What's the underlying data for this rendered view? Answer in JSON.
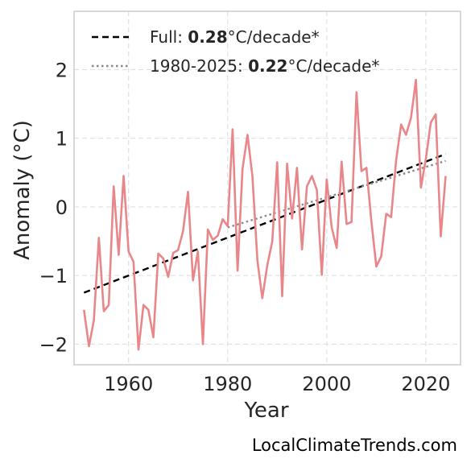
{
  "chart_data": {
    "type": "line",
    "xlabel": "Year",
    "ylabel": "Anomaly (°C)",
    "xlim": [
      1949,
      2027
    ],
    "ylim": [
      -2.3,
      2.85
    ],
    "xticks": [
      1960,
      1980,
      2000,
      2020
    ],
    "yticks": [
      2,
      1,
      0,
      -1,
      -2
    ],
    "xtick_labels": [
      "1960",
      "1980",
      "2000",
      "2020"
    ],
    "ytick_labels": [
      "2",
      "1",
      "0",
      "−1",
      "−2"
    ],
    "grid": true,
    "legend_position": "top-left",
    "series": [
      {
        "name": "",
        "color": "#e8868a",
        "x": [
          1951,
          1952,
          1953,
          1954,
          1955,
          1956,
          1957,
          1958,
          1959,
          1960,
          1961,
          1962,
          1963,
          1964,
          1965,
          1966,
          1967,
          1968,
          1969,
          1970,
          1971,
          1972,
          1973,
          1974,
          1975,
          1976,
          1977,
          1978,
          1979,
          1980,
          1981,
          1982,
          1983,
          1984,
          1985,
          1986,
          1987,
          1988,
          1989,
          1990,
          1991,
          1992,
          1993,
          1994,
          1995,
          1996,
          1997,
          1998,
          1999,
          2000,
          2001,
          2002,
          2003,
          2004,
          2005,
          2006,
          2007,
          2008,
          2009,
          2010,
          2011,
          2012,
          2013,
          2014,
          2015,
          2016,
          2017,
          2018,
          2019,
          2020,
          2021,
          2022,
          2023,
          2024
        ],
        "values": [
          -1.5,
          -2.03,
          -1.65,
          -0.45,
          -1.52,
          -1.43,
          0.3,
          -0.7,
          0.45,
          -0.65,
          -0.8,
          -2.08,
          -1.43,
          -1.5,
          -1.9,
          -0.68,
          -0.75,
          -1.02,
          -0.67,
          -0.63,
          -0.35,
          0.22,
          -1.07,
          -0.65,
          -2.0,
          -0.33,
          -0.48,
          -0.42,
          -0.18,
          -0.28,
          1.13,
          -0.93,
          0.55,
          1.05,
          0.45,
          -0.78,
          -1.33,
          -0.85,
          -0.5,
          0.65,
          -1.3,
          0.63,
          -0.17,
          0.57,
          -0.62,
          0.3,
          0.45,
          0.25,
          -0.99,
          0.4,
          -0.3,
          -0.6,
          0.66,
          -0.25,
          -0.22,
          1.67,
          0.52,
          0.57,
          -0.2,
          -0.87,
          -0.72,
          -0.1,
          -0.15,
          0.68,
          1.2,
          1.05,
          1.3,
          1.85,
          0.28,
          0.7,
          1.23,
          1.35,
          -0.43,
          0.45
        ]
      }
    ],
    "trends": [
      {
        "name_prefix": "Full: ",
        "rate": "0.28",
        "unit": "°C/decade*",
        "style": "dashed",
        "color": "#000000",
        "x": [
          1951,
          2024
        ],
        "y": [
          -1.25,
          0.77
        ]
      },
      {
        "name_prefix": "1980-2025: ",
        "rate": "0.22",
        "unit": "°C/decade*",
        "style": "dotted",
        "color": "#888888",
        "x": [
          1980,
          2024
        ],
        "y": [
          -0.3,
          0.67
        ]
      }
    ]
  },
  "footer": {
    "text": "LocalClimateTrends.com"
  }
}
